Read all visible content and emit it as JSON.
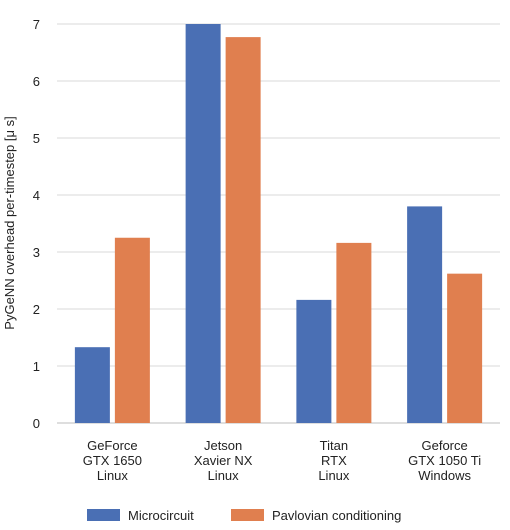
{
  "chart_data": {
    "type": "bar",
    "categories": [
      [
        "GeForce",
        "GTX 1650",
        "Linux"
      ],
      [
        "Jetson",
        "Xavier NX",
        "Linux"
      ],
      [
        "Titan",
        "RTX",
        "Linux"
      ],
      [
        "Geforce",
        "GTX 1050 Ti",
        "Windows"
      ]
    ],
    "series": [
      {
        "name": "Microcircuit",
        "color": "#4a6fb4",
        "values": [
          1.33,
          7.0,
          2.16,
          3.8
        ]
      },
      {
        "name": "Pavlovian conditioning",
        "color": "#e07f4f",
        "values": [
          3.25,
          6.77,
          3.16,
          2.62
        ]
      }
    ],
    "title": "",
    "xlabel": "",
    "ylabel": "PyGeNN overhead per-timestep [μ s]",
    "ylim": [
      0,
      7
    ],
    "yticks": [
      0,
      1,
      2,
      3,
      4,
      5,
      6,
      7
    ],
    "grid": true,
    "legend_position": "bottom"
  }
}
